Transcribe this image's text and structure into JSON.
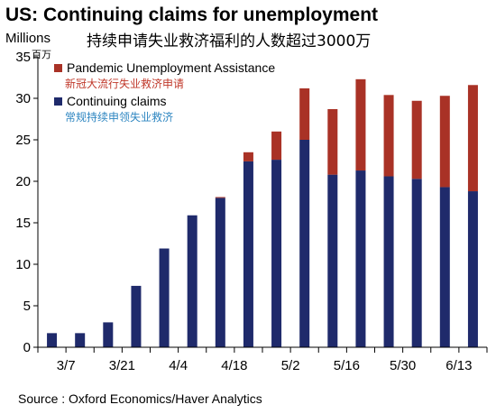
{
  "chart_data": {
    "type": "bar",
    "stacked": true,
    "title": "US: Continuing claims for unemployment",
    "subtitle": "持续申请失业救济福利的人数超过3000万",
    "ylabel": "Millions",
    "ylabel_cn": "百万",
    "ylim": [
      0,
      35
    ],
    "yticks": [
      0,
      5,
      10,
      15,
      20,
      25,
      30,
      35
    ],
    "x": [
      "3/7",
      "3/14",
      "3/21",
      "3/28",
      "4/4",
      "4/11",
      "4/18",
      "4/25",
      "5/2",
      "5/9",
      "5/16",
      "5/23",
      "5/30",
      "6/6",
      "6/13",
      "6/20"
    ],
    "xtick_labels": [
      "3/7",
      "3/21",
      "4/4",
      "4/18",
      "5/2",
      "5/16",
      "5/30",
      "6/13"
    ],
    "series": [
      {
        "name": "Continuing claims",
        "name_cn": "常规持续申领失业救济",
        "color": "#1f2a6b",
        "values": [
          1.7,
          1.7,
          3.0,
          7.4,
          11.9,
          15.9,
          18.0,
          22.4,
          22.6,
          25.0,
          20.8,
          21.3,
          20.6,
          20.3,
          19.3,
          18.8
        ]
      },
      {
        "name": "Pandemic Unemployment Assistance",
        "name_cn": "新冠大流行失业救济申请",
        "color": "#a93226",
        "values": [
          0,
          0,
          0,
          0,
          0,
          0,
          0.1,
          1.1,
          3.4,
          6.2,
          7.9,
          11.0,
          9.8,
          9.4,
          11.0,
          12.8
        ]
      }
    ],
    "legend": "top-left",
    "grid": false,
    "source": "Source : Oxford Economics/Haver Analytics"
  }
}
